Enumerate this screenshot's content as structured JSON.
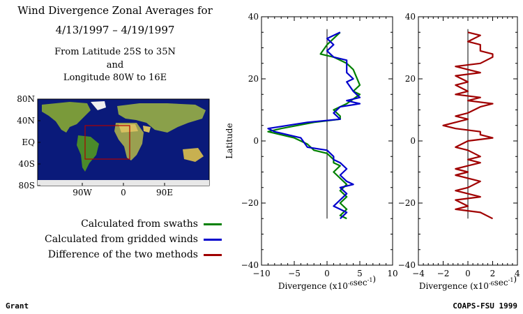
{
  "header": {
    "title_line1": "Wind Divergence Zonal Averages for",
    "title_line2": "4/13/1997 – 4/19/1997",
    "sub_line1": "From Latitude 25S to 35N",
    "sub_line2": "and",
    "sub_line3": "Longitude 80W to 16E"
  },
  "map": {
    "lat_labels": [
      "80N",
      "40N",
      "EQ",
      "40S",
      "80S"
    ],
    "lon_labels": [
      "90W",
      "0",
      "90E"
    ],
    "box_color": "#b00000"
  },
  "legend": [
    {
      "label": "Calculated from swaths",
      "color": "#008000"
    },
    {
      "label": "Calculated from gridded winds",
      "color": "#0000cc"
    },
    {
      "label": "Difference of the two methods",
      "color": "#a00000"
    }
  ],
  "footer": {
    "left": "Grant",
    "right": "COAPS-FSU 1999"
  },
  "chart_data": [
    {
      "type": "line",
      "ylabel": "Latitude",
      "xlabel": "Divergence (x10",
      "xlabel_exp": "-6",
      "xlabel_unit": "sec",
      "xlabel_unit_exp": "-1",
      "xlabel_close": ")",
      "xlim": [
        -10,
        10
      ],
      "ylim": [
        -40,
        40
      ],
      "xticks": [
        "−10",
        "−5",
        "0",
        "5",
        "10"
      ],
      "yticks": [
        "−40",
        "−20",
        "0",
        "20",
        "40"
      ],
      "series": [
        {
          "name": "Calculated from swaths",
          "color": "#008000",
          "points": [
            [
              2,
              35
            ],
            [
              1,
              33
            ],
            [
              0,
              31
            ],
            [
              -1,
              28
            ],
            [
              1,
              27
            ],
            [
              3,
              25
            ],
            [
              4,
              23
            ],
            [
              5,
              18
            ],
            [
              4,
              16
            ],
            [
              5,
              15
            ],
            [
              3,
              12
            ],
            [
              1,
              10
            ],
            [
              2,
              8
            ],
            [
              2,
              7
            ],
            [
              -2,
              6
            ],
            [
              -7,
              4
            ],
            [
              -9,
              3
            ],
            [
              -5,
              1
            ],
            [
              -3,
              -1
            ],
            [
              -2,
              -3
            ],
            [
              0,
              -4
            ],
            [
              1,
              -6
            ],
            [
              1,
              -7
            ],
            [
              2,
              -8
            ],
            [
              1,
              -10
            ],
            [
              2,
              -12
            ],
            [
              3,
              -14
            ],
            [
              2,
              -16
            ],
            [
              3,
              -18
            ],
            [
              2,
              -20
            ],
            [
              3,
              -22
            ],
            [
              2,
              -24
            ],
            [
              3,
              -25
            ]
          ]
        },
        {
          "name": "Calculated from gridded winds",
          "color": "#0000cc",
          "points": [
            [
              2,
              35
            ],
            [
              0,
              33
            ],
            [
              1,
              31
            ],
            [
              0,
              29
            ],
            [
              1,
              27
            ],
            [
              3,
              26
            ],
            [
              3,
              22
            ],
            [
              4,
              20
            ],
            [
              3,
              19
            ],
            [
              4,
              16
            ],
            [
              5,
              14
            ],
            [
              3,
              13
            ],
            [
              5,
              12
            ],
            [
              2,
              11
            ],
            [
              1,
              9
            ],
            [
              2,
              7
            ],
            [
              -3,
              6
            ],
            [
              -9,
              4
            ],
            [
              -8,
              3
            ],
            [
              -4,
              1
            ],
            [
              -3,
              -2
            ],
            [
              0,
              -3
            ],
            [
              1,
              -5
            ],
            [
              1,
              -6
            ],
            [
              2,
              -7
            ],
            [
              3,
              -9
            ],
            [
              2,
              -11
            ],
            [
              3,
              -13
            ],
            [
              4,
              -14
            ],
            [
              2,
              -15
            ],
            [
              3,
              -17
            ],
            [
              2,
              -19
            ],
            [
              1,
              -21
            ],
            [
              3,
              -23
            ],
            [
              2,
              -25
            ]
          ]
        }
      ]
    },
    {
      "type": "line",
      "xlabel": "Divergence (x10",
      "xlabel_exp": "-6",
      "xlabel_unit": "sec",
      "xlabel_unit_exp": "-1",
      "xlabel_close": ")",
      "xlim": [
        -4,
        4
      ],
      "ylim": [
        -40,
        40
      ],
      "xticks": [
        "−4",
        "−2",
        "0",
        "2",
        "4"
      ],
      "yticks": [
        "−40",
        "−20",
        "0",
        "20",
        "40"
      ],
      "series": [
        {
          "name": "Difference of the two methods",
          "color": "#a00000",
          "points": [
            [
              0,
              35
            ],
            [
              1,
              34
            ],
            [
              0,
              32
            ],
            [
              1,
              31
            ],
            [
              1,
              29
            ],
            [
              2,
              28
            ],
            [
              2,
              27
            ],
            [
              1,
              25
            ],
            [
              -1,
              24
            ],
            [
              0,
              23
            ],
            [
              1,
              22
            ],
            [
              -1,
              21
            ],
            [
              0,
              19
            ],
            [
              -1,
              18
            ],
            [
              0,
              16
            ],
            [
              -1,
              15
            ],
            [
              1,
              14
            ],
            [
              0,
              13
            ],
            [
              2,
              12
            ],
            [
              1,
              11
            ],
            [
              0,
              9
            ],
            [
              -1,
              8
            ],
            [
              0,
              7
            ],
            [
              -2,
              5
            ],
            [
              -1,
              4
            ],
            [
              1,
              3
            ],
            [
              1,
              2
            ],
            [
              2,
              1
            ],
            [
              0,
              0
            ],
            [
              -1,
              -2
            ],
            [
              0,
              -3
            ],
            [
              1,
              -5
            ],
            [
              0,
              -6
            ],
            [
              1,
              -7
            ],
            [
              0,
              -8
            ],
            [
              -1,
              -9
            ],
            [
              0,
              -10
            ],
            [
              -1,
              -11
            ],
            [
              0,
              -12
            ],
            [
              1,
              -13
            ],
            [
              0,
              -15
            ],
            [
              -1,
              -16
            ],
            [
              0,
              -17
            ],
            [
              1,
              -18
            ],
            [
              -1,
              -19
            ],
            [
              0,
              -21
            ],
            [
              -1,
              -22
            ],
            [
              1,
              -23
            ],
            [
              2,
              -25
            ]
          ]
        }
      ]
    }
  ]
}
